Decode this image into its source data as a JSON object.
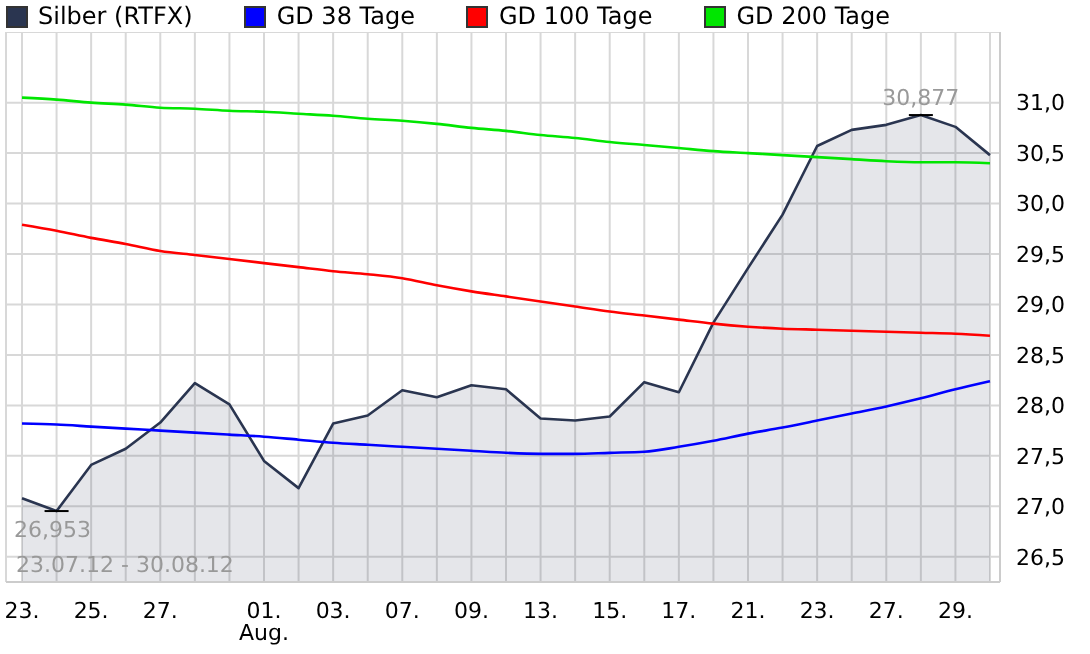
{
  "chart_data": {
    "type": "line",
    "categories": [
      "23.",
      null,
      "25.",
      null,
      "27.",
      null,
      null,
      "01.\nAug.",
      null,
      "03.",
      null,
      "07.",
      null,
      "09.",
      null,
      "13.",
      null,
      "15.",
      null,
      "17.",
      null,
      "21.",
      null,
      "23.",
      null,
      "27.",
      null,
      "29.",
      null
    ],
    "series": [
      {
        "name": "Silber (RTFX)",
        "type": "area",
        "color": "#2a3550",
        "values": [
          27.08,
          26.953,
          27.41,
          27.57,
          27.83,
          28.22,
          28.01,
          27.45,
          27.18,
          27.82,
          27.9,
          28.15,
          28.08,
          28.2,
          28.16,
          27.87,
          27.85,
          27.89,
          28.23,
          28.13,
          28.82,
          29.36,
          29.89,
          30.57,
          30.73,
          30.78,
          30.877,
          30.76,
          30.48
        ]
      },
      {
        "name": "GD 38 Tage",
        "color": "#0000ff",
        "values": [
          27.82,
          27.81,
          27.79,
          27.77,
          27.75,
          27.73,
          27.71,
          27.69,
          27.66,
          27.63,
          27.61,
          27.59,
          27.57,
          27.55,
          27.53,
          27.52,
          27.52,
          27.53,
          27.54,
          27.59,
          27.65,
          27.72,
          27.78,
          27.85,
          27.92,
          27.99,
          28.07,
          28.16,
          28.24
        ]
      },
      {
        "name": "GD 100 Tage",
        "color": "#ff0000",
        "values": [
          29.79,
          29.73,
          29.66,
          29.6,
          29.53,
          29.49,
          29.45,
          29.41,
          29.37,
          29.33,
          29.3,
          29.26,
          29.19,
          29.13,
          29.08,
          29.03,
          28.98,
          28.93,
          28.89,
          28.85,
          28.81,
          28.78,
          28.76,
          28.75,
          28.74,
          28.73,
          28.72,
          28.71,
          28.69
        ]
      },
      {
        "name": "GD 200 Tage",
        "color": "#00e600",
        "values": [
          31.05,
          31.03,
          31.0,
          30.98,
          30.95,
          30.94,
          30.92,
          30.91,
          30.89,
          30.87,
          30.84,
          30.82,
          30.79,
          30.75,
          30.72,
          30.68,
          30.65,
          30.61,
          30.58,
          30.55,
          30.52,
          30.5,
          30.48,
          30.46,
          30.44,
          30.42,
          30.41,
          30.41,
          30.4
        ]
      }
    ],
    "ylim": [
      26.25,
      31.7
    ],
    "yticks": [
      {
        "value": 26.5,
        "label": "26,5"
      },
      {
        "value": 27,
        "label": "27,0"
      },
      {
        "value": 27.5,
        "label": "27,5"
      },
      {
        "value": 28,
        "label": "28,0"
      },
      {
        "value": 28.5,
        "label": "28,5"
      },
      {
        "value": 29,
        "label": "29,0"
      },
      {
        "value": 29.5,
        "label": "29,5"
      },
      {
        "value": 30,
        "label": "30,0"
      },
      {
        "value": 30.5,
        "label": "30,5"
      },
      {
        "value": 31,
        "label": "31,0"
      }
    ],
    "annotations": [
      {
        "text": "26,953",
        "y": 26.953
      },
      {
        "text": "30,877",
        "y": 30.877
      },
      "23.07.12 - 30.08.12"
    ],
    "grid": true,
    "legend": "top",
    "marker": "none",
    "line_style": "solid"
  }
}
